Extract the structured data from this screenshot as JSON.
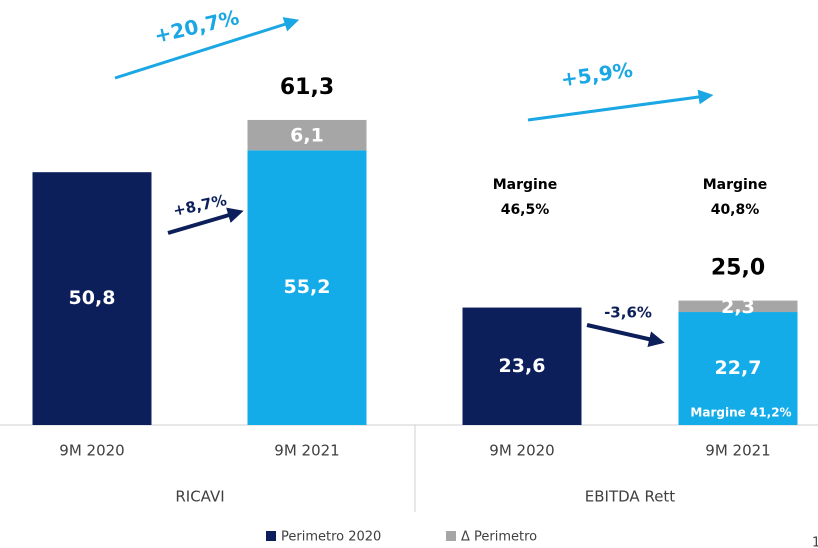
{
  "chart_data": {
    "type": "stacked_bar",
    "categories": [
      "9M 2020",
      "9M 2021",
      "9M 2020",
      "9M 2021"
    ],
    "groups": [
      "RICAVI",
      "EBITDA Rett"
    ],
    "ylim": [
      0,
      85
    ],
    "series": [
      {
        "name": "Perimetro 2020",
        "color": "#0d1f5a",
        "colors": [
          "#0d1f5a",
          "#14ace8",
          "#0d1f5a",
          "#14ace8"
        ],
        "values": [
          50.8,
          55.2,
          23.6,
          22.7
        ],
        "value_labels": [
          "50,8",
          "55,2",
          "23,6",
          "22,7"
        ]
      },
      {
        "name": "Δ Perimetro",
        "color": "#a6a6a6",
        "values": [
          null,
          6.1,
          null,
          2.3
        ],
        "value_labels": [
          null,
          "6,1",
          null,
          "2,3"
        ]
      }
    ],
    "totals": [
      null,
      61.3,
      null,
      25.0
    ],
    "total_labels": [
      null,
      "61,3",
      null,
      "25,0"
    ],
    "annotations": [
      "+20,7%",
      "+8,7%",
      "+5,9%",
      "-3,6%",
      "Margine",
      "46,5%",
      "Margine",
      "40,8%",
      "Margine 41,2%"
    ],
    "page_number": "1"
  }
}
